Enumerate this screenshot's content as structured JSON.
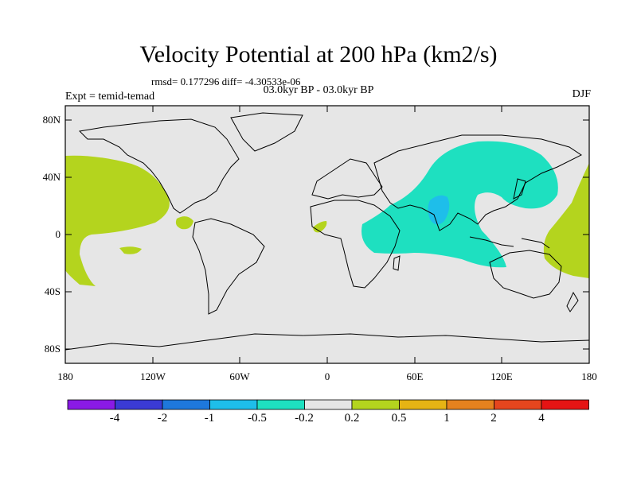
{
  "title": "Velocity Potential at 200 hPa (km2/s)",
  "stats": "rmsd= 0.177296  diff= -4.30533e-06",
  "period": "03.0kyr BP - 03.0kyr BP",
  "expt": "Expt = temid-temad",
  "season": "DJF",
  "y_axis": [
    "80N",
    "40N",
    "0",
    "40S",
    "80S"
  ],
  "x_axis": [
    "180",
    "120W",
    "60W",
    "0",
    "60E",
    "120E",
    "180"
  ],
  "colorbar": {
    "colors": [
      "#8a1ae6",
      "#3a3ad4",
      "#1e78dc",
      "#1ebeea",
      "#1ee0c0",
      "#e6e6e6",
      "#b4d41e",
      "#e6b414",
      "#e6821e",
      "#e6461e",
      "#e61414"
    ],
    "labels": [
      "-4",
      "-2",
      "-1",
      "-0.5",
      "-0.2",
      "0.2",
      "0.5",
      "1",
      "2",
      "4"
    ]
  },
  "colors": {
    "land_background": "#e6e6e6",
    "positive_region": "#b4d41e",
    "negative_region": "#1ee0c0",
    "strong_negative": "#1ebeea"
  }
}
